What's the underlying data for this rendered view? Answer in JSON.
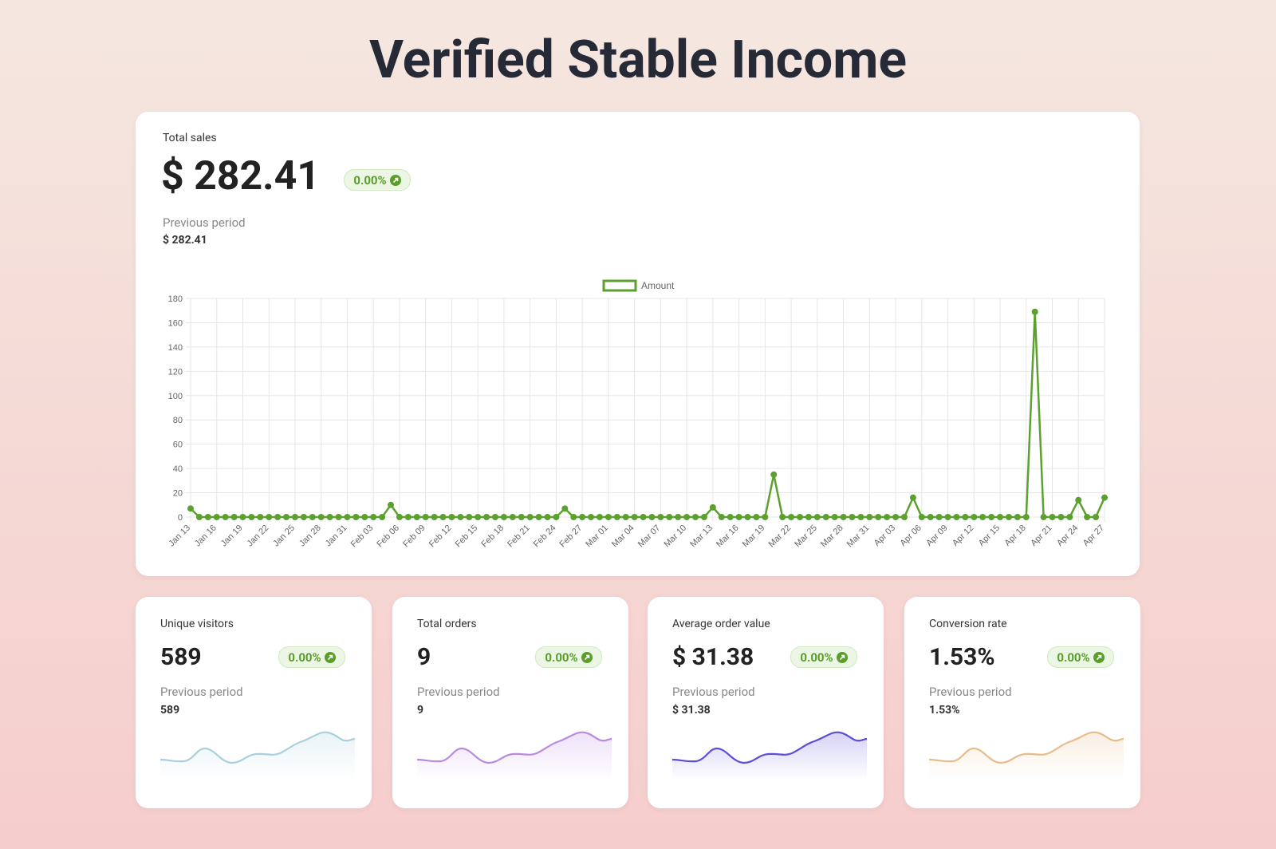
{
  "title": "Verified Stable Income",
  "sales": {
    "label": "Total sales",
    "value": "$ 282.41",
    "change": "0.00%",
    "previous_label": "Previous period",
    "previous_value": "$ 282.41"
  },
  "chart_data": {
    "type": "line",
    "categories": [
      "Jan 13",
      null,
      null,
      "Jan 16",
      null,
      null,
      "Jan 19",
      null,
      null,
      "Jan 22",
      null,
      null,
      "Jan 25",
      null,
      null,
      "Jan 28",
      null,
      null,
      "Jan 31",
      null,
      null,
      "Feb 03",
      null,
      null,
      "Feb 06",
      null,
      null,
      "Feb 09",
      null,
      null,
      "Feb 12",
      null,
      null,
      "Feb 15",
      null,
      null,
      "Feb 18",
      null,
      null,
      "Feb 21",
      null,
      null,
      "Feb 24",
      null,
      null,
      "Feb 27",
      null,
      null,
      "Mar 01",
      null,
      null,
      "Mar 04",
      null,
      null,
      "Mar 07",
      null,
      null,
      "Mar 10",
      null,
      null,
      "Mar 13",
      null,
      null,
      "Mar 16",
      null,
      null,
      "Mar 19",
      null,
      null,
      "Mar 22",
      null,
      null,
      "Mar 25",
      null,
      null,
      "Mar 28",
      null,
      null,
      "Mar 31",
      null,
      null,
      "Apr 03",
      null,
      null,
      "Apr 06",
      null,
      null,
      "Apr 09",
      null,
      null,
      "Apr 12",
      null,
      null,
      "Apr 15",
      null,
      null,
      "Apr 18",
      null,
      null,
      "Apr 21",
      null,
      null,
      "Apr 24",
      null,
      null,
      "Apr 27"
    ],
    "series": [
      {
        "name": "Amount",
        "color": "#5ca12f",
        "values": [
          7,
          0,
          0,
          0,
          0,
          0,
          0,
          0,
          0,
          0,
          0,
          0,
          0,
          0,
          0,
          0,
          0,
          0,
          0,
          0,
          0,
          0,
          0,
          10,
          0,
          0,
          0,
          0,
          0,
          0,
          0,
          0,
          0,
          0,
          0,
          0,
          0,
          0,
          0,
          0,
          0,
          0,
          0,
          7,
          0,
          0,
          0,
          0,
          0,
          0,
          0,
          0,
          0,
          0,
          0,
          0,
          0,
          0,
          0,
          0,
          8,
          0,
          0,
          0,
          0,
          0,
          0,
          35,
          0,
          0,
          0,
          0,
          0,
          0,
          0,
          0,
          0,
          0,
          0,
          0,
          0,
          0,
          0,
          16,
          0,
          0,
          0,
          0,
          0,
          0,
          0,
          0,
          0,
          0,
          0,
          0,
          0,
          169,
          0,
          0,
          0,
          0,
          14,
          0,
          0,
          16
        ]
      }
    ],
    "ylim": [
      0,
      180
    ],
    "yticks": [
      0,
      20,
      40,
      60,
      80,
      100,
      120,
      140,
      160,
      180
    ],
    "grid": true,
    "legend_position": "top"
  },
  "metrics": [
    {
      "label": "Unique visitors",
      "value": "589",
      "change": "0.00%",
      "previous_label": "Previous period",
      "previous_value": "589"
    },
    {
      "label": "Total orders",
      "value": "9",
      "change": "0.00%",
      "previous_label": "Previous period",
      "previous_value": "9"
    },
    {
      "label": "Average order value",
      "value": "$ 31.38",
      "change": "0.00%",
      "previous_label": "Previous period",
      "previous_value": "$ 31.38"
    },
    {
      "label": "Conversion rate",
      "value": "1.53%",
      "change": "0.00%",
      "previous_label": "Previous period",
      "previous_value": "1.53%"
    }
  ]
}
